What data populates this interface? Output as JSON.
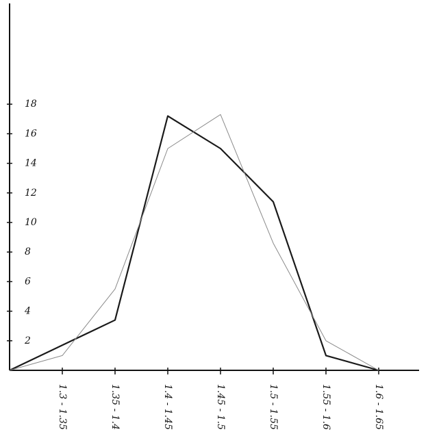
{
  "chart_data": {
    "type": "line",
    "categories": [
      null,
      "1.3 - 1.35",
      "1.35 - 1.4",
      "1.4 - 1.45",
      "1.45 - 1.5",
      "1.5 - 1.55",
      "1.55 - 1.6",
      "1.6 - 1.65"
    ],
    "series": [
      {
        "color": "#1a1a1a",
        "width": 2.2,
        "values": [
          0,
          1.7,
          3.4,
          17.2,
          15,
          11.4,
          1,
          0
        ]
      },
      {
        "color": "#8a8a8a",
        "width": 1,
        "values": [
          0,
          1,
          5.5,
          15,
          17.3,
          8.6,
          2,
          0
        ]
      }
    ],
    "ylim": [
      0,
      25
    ],
    "yticks": [
      2,
      4,
      6,
      8,
      10,
      12,
      14,
      16,
      18
    ]
  }
}
